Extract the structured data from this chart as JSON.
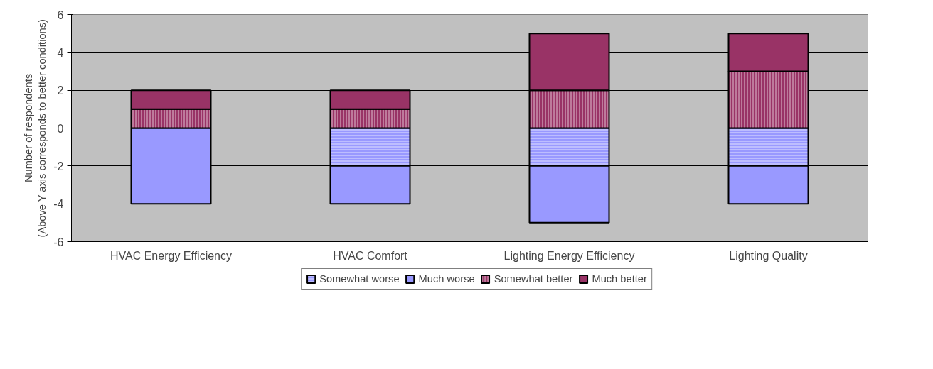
{
  "chart_data": {
    "type": "bar",
    "stacked": true,
    "ylabel": "Number of respondents\n(Above Y axis corresponds to better conditions)",
    "categories": [
      "HVAC Energy Efficiency",
      "HVAC Comfort",
      "Lighting Energy Efficiency",
      "Lighting Quality"
    ],
    "series": [
      {
        "name": "Somewhat worse",
        "color": "#9999ff",
        "values": [
          0,
          -2,
          -2,
          -2
        ]
      },
      {
        "name": "Much worse",
        "color": "#9999ff",
        "values": [
          -4,
          -2,
          -3,
          -2
        ]
      },
      {
        "name": "Somewhat better",
        "color": "#993366",
        "values": [
          1,
          1,
          2,
          3
        ]
      },
      {
        "name": "Much better",
        "color": "#993366",
        "values": [
          1,
          1,
          3,
          2
        ]
      }
    ],
    "ylim": [
      -6,
      6
    ],
    "yticks": [
      {
        "value": -6,
        "label": "-6"
      },
      {
        "value": -4,
        "label": "-4"
      },
      {
        "value": -2,
        "label": "-2"
      },
      0,
      2,
      4,
      6
    ],
    "grid": "y",
    "legend": "bottom"
  }
}
